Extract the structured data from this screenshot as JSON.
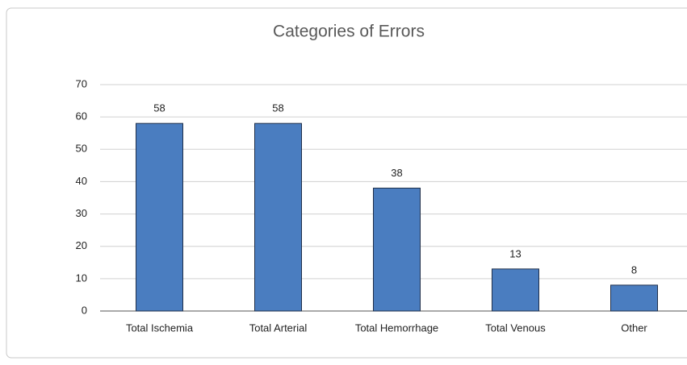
{
  "chart_data": {
    "type": "bar",
    "title": "Categories of Errors",
    "categories": [
      "Total Ischemia",
      "Total Arterial",
      "Total Hemorrhage",
      "Total Venous",
      "Other"
    ],
    "values": [
      58,
      58,
      38,
      13,
      8
    ],
    "color": "#4a7dc0",
    "ylim": [
      0,
      70
    ],
    "yticks": [
      0,
      10,
      20,
      30,
      40,
      50,
      60,
      70
    ],
    "grid": true
  }
}
